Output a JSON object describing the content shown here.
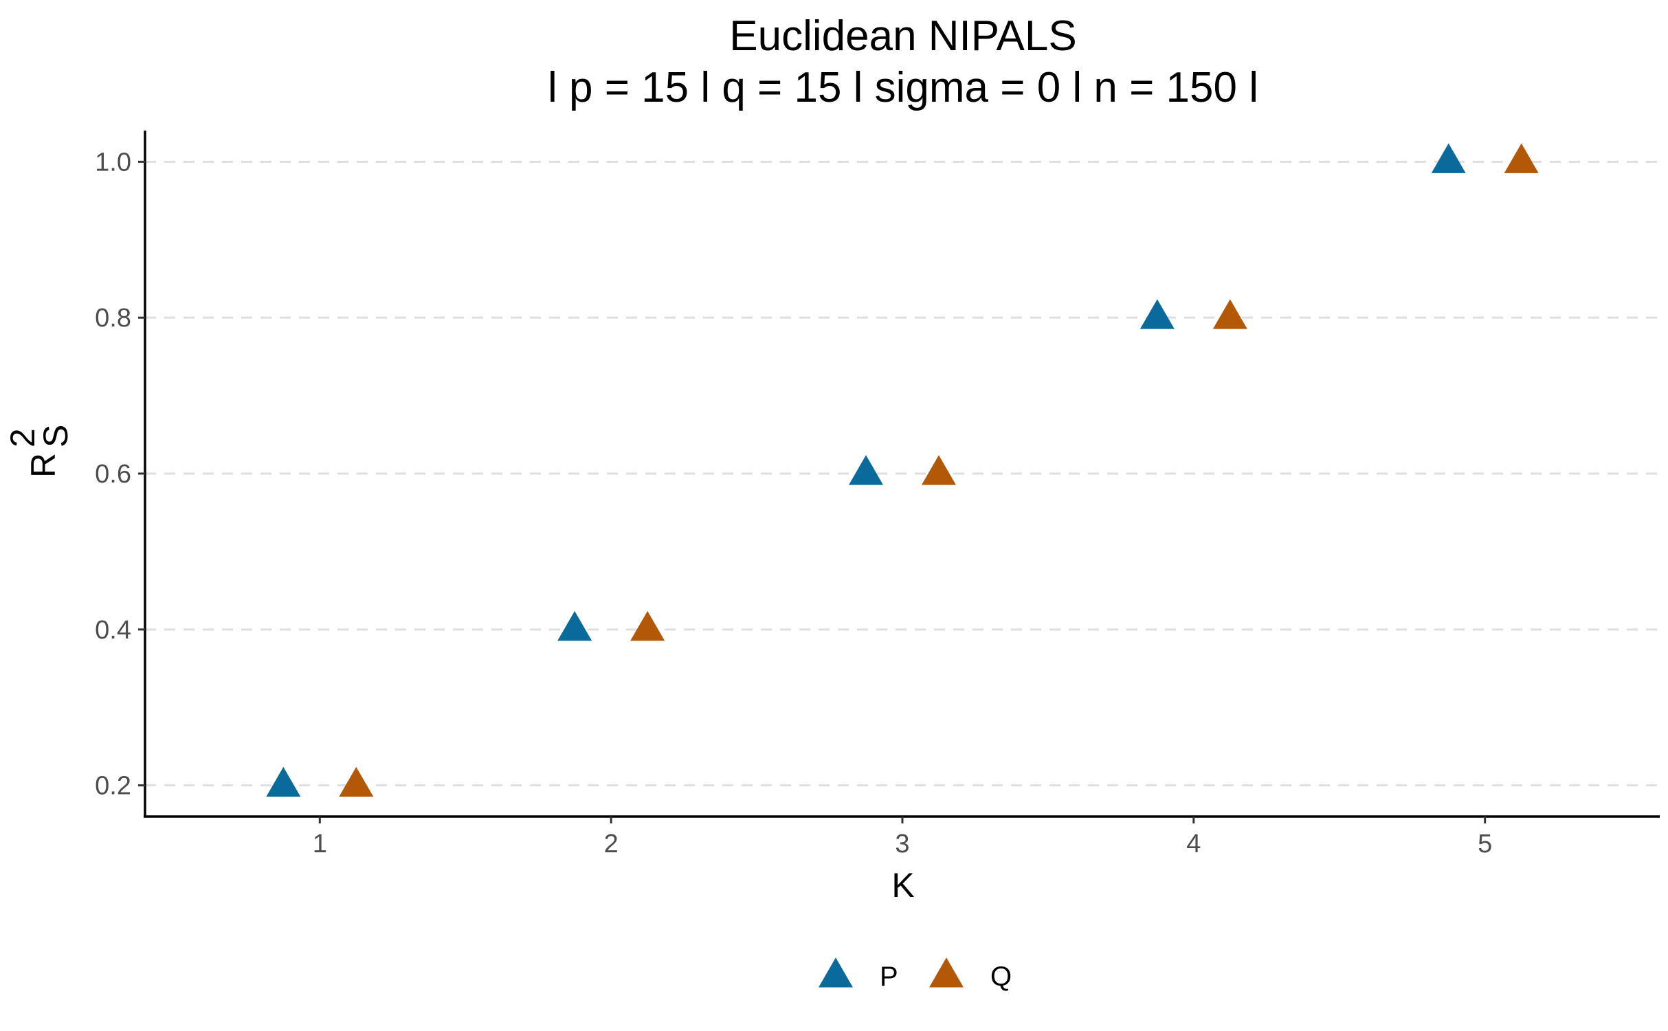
{
  "chart_data": {
    "type": "scatter",
    "title": "Euclidean NIPALS",
    "subtitle": "l p = 15 l q = 15 l sigma = 0 l n = 150 l",
    "xlabel": "K",
    "ylabel": {
      "base": "R",
      "sup": "2",
      "sub": "S"
    },
    "x_ticks": [
      "1",
      "2",
      "3",
      "4",
      "5"
    ],
    "y_ticks": [
      "0.2",
      "0.4",
      "0.6",
      "0.8",
      "1.0"
    ],
    "xlim": [
      0.4,
      5.6
    ],
    "ylim": [
      0.16,
      1.04
    ],
    "grid": "horizontal-major-dashed",
    "legend_position": "bottom",
    "marker": "triangle",
    "series": [
      {
        "name": "P",
        "color": "#0A6A9C",
        "x": [
          1,
          2,
          3,
          4,
          5
        ],
        "dodge": -0.125,
        "values": [
          0.2,
          0.4,
          0.6,
          0.8,
          1.0
        ]
      },
      {
        "name": "Q",
        "color": "#B35806",
        "x": [
          1,
          2,
          3,
          4,
          5
        ],
        "dodge": 0.125,
        "values": [
          0.2,
          0.4,
          0.6,
          0.8,
          1.0
        ]
      }
    ]
  }
}
